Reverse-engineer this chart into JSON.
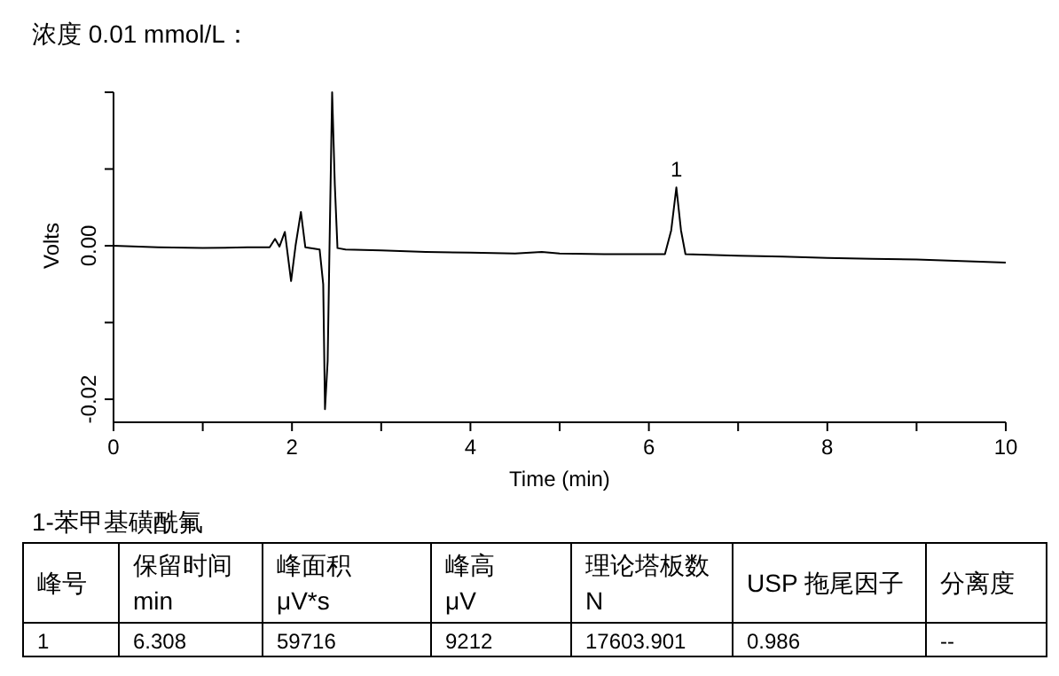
{
  "chart_data": [
    {
      "type": "line",
      "title": "浓度 0.01 mmol/L：",
      "xlabel": "Time (min)",
      "ylabel": "Volts",
      "xlim": [
        0,
        10
      ],
      "ylim": [
        -0.023,
        0.02
      ],
      "xticks": [
        0,
        {
          "value": 1,
          "label": null
        },
        2,
        {
          "value": 3,
          "label": null
        },
        4,
        {
          "value": 5,
          "label": null
        },
        6,
        {
          "value": 7,
          "label": null
        },
        8,
        {
          "value": 9,
          "label": null
        },
        10
      ],
      "yticks": [
        {
          "value": 0.02,
          "label": null
        },
        {
          "value": 0.01,
          "label": null
        },
        {
          "value": 0,
          "label": "0.00"
        },
        {
          "value": -0.01,
          "label": null
        },
        {
          "value": -0.02,
          "label": "-0.02"
        }
      ],
      "series": [
        {
          "color": "#000000",
          "x": [
            0,
            0.5,
            1,
            1.5,
            1.75,
            1.81,
            1.86,
            1.92,
            1.99,
            2.04,
            2.1,
            2.15,
            2.31,
            2.35,
            2.37,
            2.4,
            2.42,
            2.45,
            2.48,
            2.51,
            2.6,
            3,
            3.5,
            4,
            4.5,
            4.8,
            5,
            5.5,
            6,
            6.18,
            6.25,
            6.308,
            6.36,
            6.41,
            7,
            7.5,
            8,
            8.5,
            9,
            9.5,
            10
          ],
          "values": [
            0,
            -0.0002,
            -0.0003,
            -0.0002,
            -0.0002,
            0.0009,
            -0.0001,
            0.0018,
            -0.0046,
            0.0,
            0.0044,
            -0.0002,
            -0.0005,
            -0.005,
            -0.0213,
            -0.015,
            -0.0006,
            0.02,
            0.008,
            -0.0003,
            -0.0005,
            -0.0006,
            -0.0008,
            -0.0009,
            -0.001,
            -0.0008,
            -0.001,
            -0.0011,
            -0.0011,
            -0.0011,
            0.002,
            0.0076,
            0.002,
            -0.0011,
            -0.0013,
            -0.0014,
            -0.0016,
            -0.0017,
            -0.0018,
            -0.002,
            -0.0022
          ]
        }
      ],
      "annotations": [
        {
          "text": "1",
          "x": 6.308,
          "y": 0.0076
        }
      ]
    },
    {
      "type": "other",
      "title": "1-苯甲基磺酰氟",
      "annotations": [
        "峰号",
        "保留时间\nmin",
        "峰面积\nμV*s",
        "峰高\nμV",
        "理论塔板数\nN",
        "USP 拖尾因子",
        "分离度",
        "1",
        "6.308",
        "59716",
        "9212",
        "17603.901",
        "0.986",
        "--"
      ]
    }
  ]
}
